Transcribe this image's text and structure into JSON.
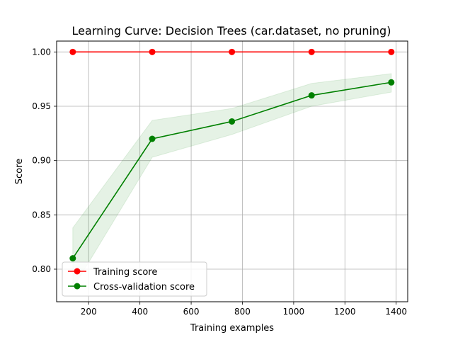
{
  "chart_data": {
    "type": "line",
    "title": "Learning Curve: Decision Trees (car.dataset, no pruning)",
    "xlabel": "Training examples",
    "ylabel": "Score",
    "xlim": [
      75,
      1445
    ],
    "ylim": [
      0.77,
      1.01
    ],
    "xticks": [
      200,
      400,
      600,
      800,
      1000,
      1200,
      1400
    ],
    "xtick_labels": [
      "200",
      "400",
      "600",
      "800",
      "1000",
      "1200",
      "1400"
    ],
    "yticks": [
      0.8,
      0.85,
      0.9,
      0.95,
      1.0
    ],
    "ytick_labels": [
      "0.80",
      "0.85",
      "0.90",
      "0.95",
      "1.00"
    ],
    "grid": true,
    "legend_position": "lower-left",
    "x": [
      138,
      448,
      759,
      1070,
      1381
    ],
    "series": [
      {
        "name": "Training score",
        "color": "#ff0000",
        "values": [
          1.0,
          1.0,
          1.0,
          1.0,
          1.0
        ],
        "band_low": [
          1.0,
          1.0,
          1.0,
          1.0,
          1.0
        ],
        "band_high": [
          1.0,
          1.0,
          1.0,
          1.0,
          1.0
        ]
      },
      {
        "name": "Cross-validation score",
        "color": "#008000",
        "values": [
          0.81,
          0.92,
          0.936,
          0.96,
          0.972
        ],
        "band_low": [
          0.782,
          0.903,
          0.924,
          0.95,
          0.963
        ],
        "band_high": [
          0.838,
          0.937,
          0.948,
          0.971,
          0.98
        ]
      }
    ]
  }
}
